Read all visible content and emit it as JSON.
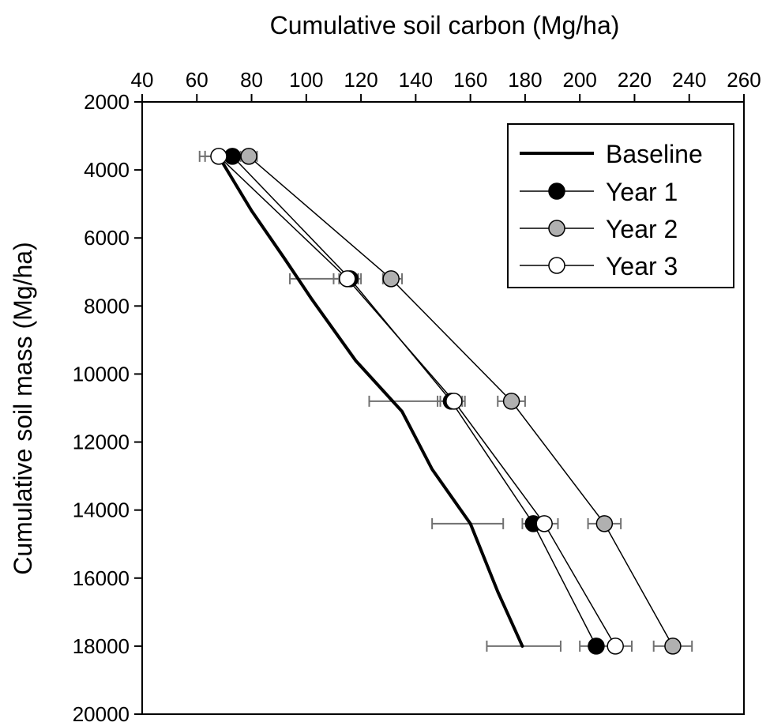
{
  "chart_data": {
    "type": "line",
    "title": "",
    "xlabel": "Cumulative soil carbon (Mg/ha)",
    "ylabel": "Cumulative soil mass (Mg/ha)",
    "xlim": [
      40,
      260
    ],
    "ylim": [
      2000,
      20000
    ],
    "y_inverted": true,
    "x_axis_position": "top",
    "x_ticks": [
      40,
      60,
      80,
      100,
      120,
      140,
      160,
      180,
      200,
      220,
      240,
      260
    ],
    "y_ticks": [
      2000,
      4000,
      6000,
      8000,
      10000,
      12000,
      14000,
      16000,
      18000,
      20000
    ],
    "grid": false,
    "legend_position": "top-right",
    "baseline": {
      "name": "Baseline",
      "points": [
        [
          68,
          3600
        ],
        [
          80,
          5200
        ],
        [
          92,
          6600
        ],
        [
          102,
          7800
        ],
        [
          118,
          9600
        ],
        [
          135,
          11100
        ],
        [
          146,
          12800
        ],
        [
          160,
          14400
        ],
        [
          170,
          16400
        ],
        [
          179,
          18000
        ]
      ],
      "errors": [
        {
          "y": 3600,
          "xmin": 61,
          "xmax": 75
        },
        {
          "y": 7200,
          "xmin": 94,
          "xmax": 119
        },
        {
          "y": 10800,
          "xmin": 123,
          "xmax": 151
        },
        {
          "y": 14400,
          "xmin": 146,
          "xmax": 172
        },
        {
          "y": 18000,
          "xmin": 166,
          "xmax": 193
        }
      ]
    },
    "series": [
      {
        "name": "Year 1",
        "fill": "#000000",
        "points": [
          [
            73,
            3600
          ],
          [
            116,
            7200
          ],
          [
            153,
            10800
          ],
          [
            183,
            14400
          ],
          [
            206,
            18000
          ]
        ],
        "errors": [
          [
            69,
            77
          ],
          [
            112,
            120
          ],
          [
            149,
            157
          ],
          [
            179,
            187
          ],
          [
            200,
            212
          ]
        ]
      },
      {
        "name": "Year 2",
        "fill": "#b0b0b0",
        "points": [
          [
            79,
            3600
          ],
          [
            131,
            7200
          ],
          [
            175,
            10800
          ],
          [
            209,
            14400
          ],
          [
            234,
            18000
          ]
        ],
        "errors": [
          [
            76,
            82
          ],
          [
            128,
            135
          ],
          [
            170,
            180
          ],
          [
            203,
            215
          ],
          [
            227,
            241
          ]
        ]
      },
      {
        "name": "Year 3",
        "fill": "#ffffff",
        "points": [
          [
            68,
            3600
          ],
          [
            115,
            7200
          ],
          [
            154,
            10800
          ],
          [
            187,
            14400
          ],
          [
            213,
            18000
          ]
        ],
        "errors": [
          [
            63,
            73
          ],
          [
            110,
            119
          ],
          [
            148,
            158
          ],
          [
            182,
            192
          ],
          [
            206,
            219
          ]
        ]
      }
    ]
  }
}
